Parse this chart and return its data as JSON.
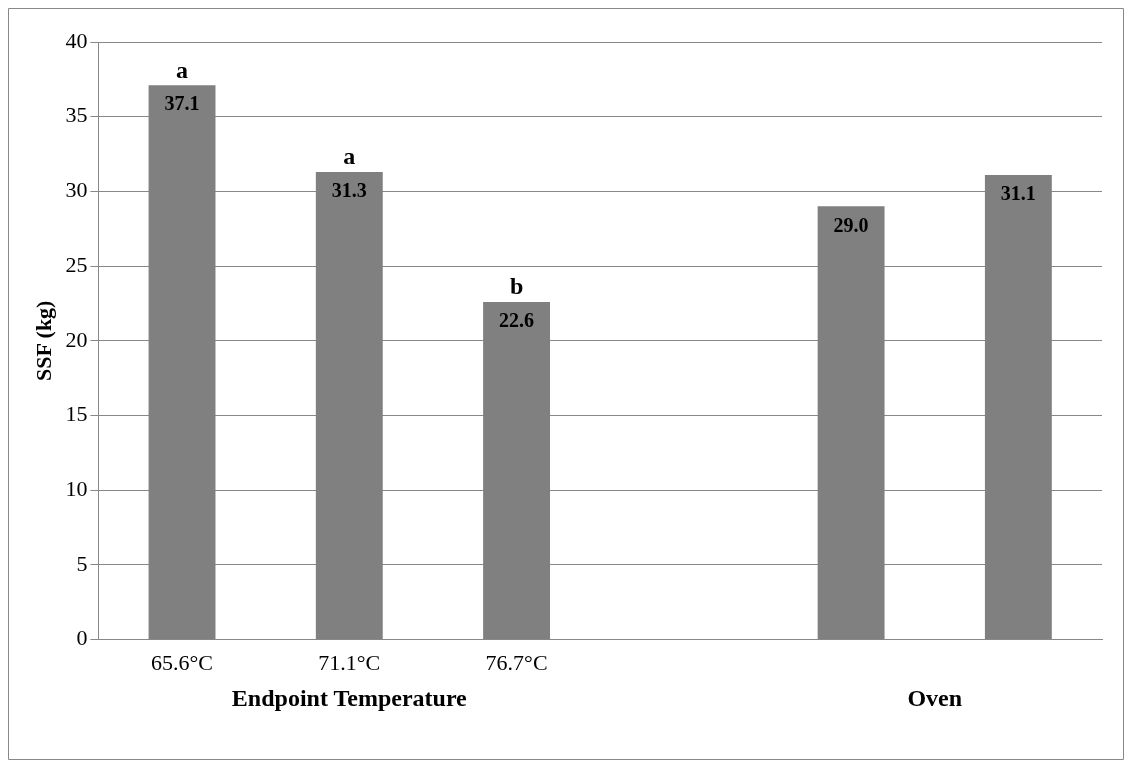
{
  "chart_data": {
    "type": "bar",
    "ylabel": "SSF (kg)",
    "categories": [
      "65.6°C",
      "71.1°C",
      "76.7°C",
      null,
      null,
      null
    ],
    "values": [
      37.1,
      31.3,
      22.6,
      null,
      29.0,
      31.1
    ],
    "color": "#808080",
    "value_labels": [
      "37.1",
      "31.3",
      "22.6",
      null,
      "29.0",
      "31.1"
    ],
    "ylim": [
      0,
      40
    ],
    "yticks": [
      0,
      5,
      10,
      15,
      20,
      25,
      30,
      35,
      40
    ],
    "grid": "y",
    "legend": false,
    "annotations": [
      {
        "text": "a",
        "x": "65.6°C",
        "y": 37.1
      },
      {
        "text": "a",
        "x": "71.1°C",
        "y": 31.3
      },
      {
        "text": "b",
        "x": "76.7°C",
        "y": 22.6
      },
      "Endpoint Temperature",
      "Oven"
    ]
  }
}
